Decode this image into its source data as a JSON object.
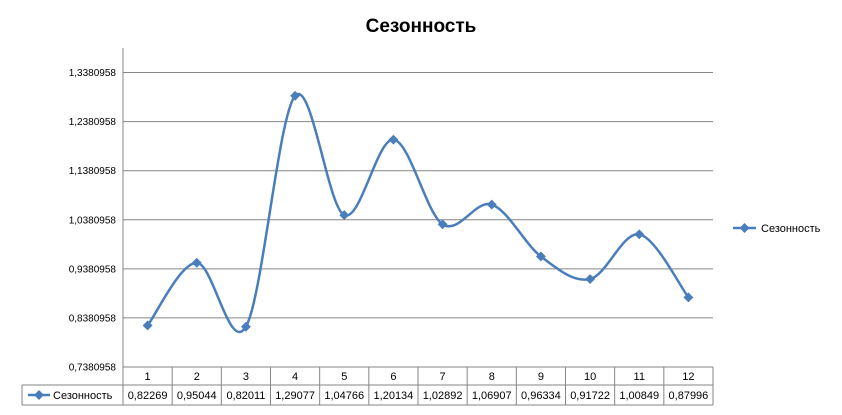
{
  "chart_data": {
    "type": "line",
    "title": "Сезонность",
    "categories": [
      "1",
      "2",
      "3",
      "4",
      "5",
      "6",
      "7",
      "8",
      "9",
      "10",
      "11",
      "12"
    ],
    "series": [
      {
        "name": "Сезонность",
        "values": [
          0.82269,
          0.95044,
          0.82011,
          1.29077,
          1.04766,
          1.20134,
          1.02892,
          1.06907,
          0.96334,
          0.91722,
          1.00849,
          0.87996
        ],
        "labels": [
          "0,82269",
          "0,95044",
          "0,82011",
          "1,29077",
          "1,04766",
          "1,20134",
          "1,02892",
          "1,06907",
          "0,96334",
          "0,91722",
          "1,00849",
          "0,87996"
        ]
      }
    ],
    "yticks": [
      "0,7380958",
      "0,8380958",
      "0,9380958",
      "1,0380958",
      "1,1380958",
      "1,2380958",
      "1,3380958"
    ],
    "ylim": [
      0.7380958,
      1.3880958
    ],
    "grid": true,
    "smooth": true,
    "data_table": true,
    "legend_position": "right",
    "series_color": "#4a7ebb"
  }
}
